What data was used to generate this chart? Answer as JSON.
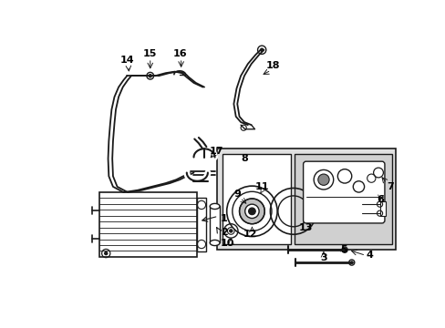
{
  "bg_color": "#ffffff",
  "line_color": "#1a1a1a",
  "box_fill": "#e0e0e0",
  "inner_box_fill": "#d0d0d0",
  "fig_width": 4.89,
  "fig_height": 3.6,
  "dpi": 100
}
